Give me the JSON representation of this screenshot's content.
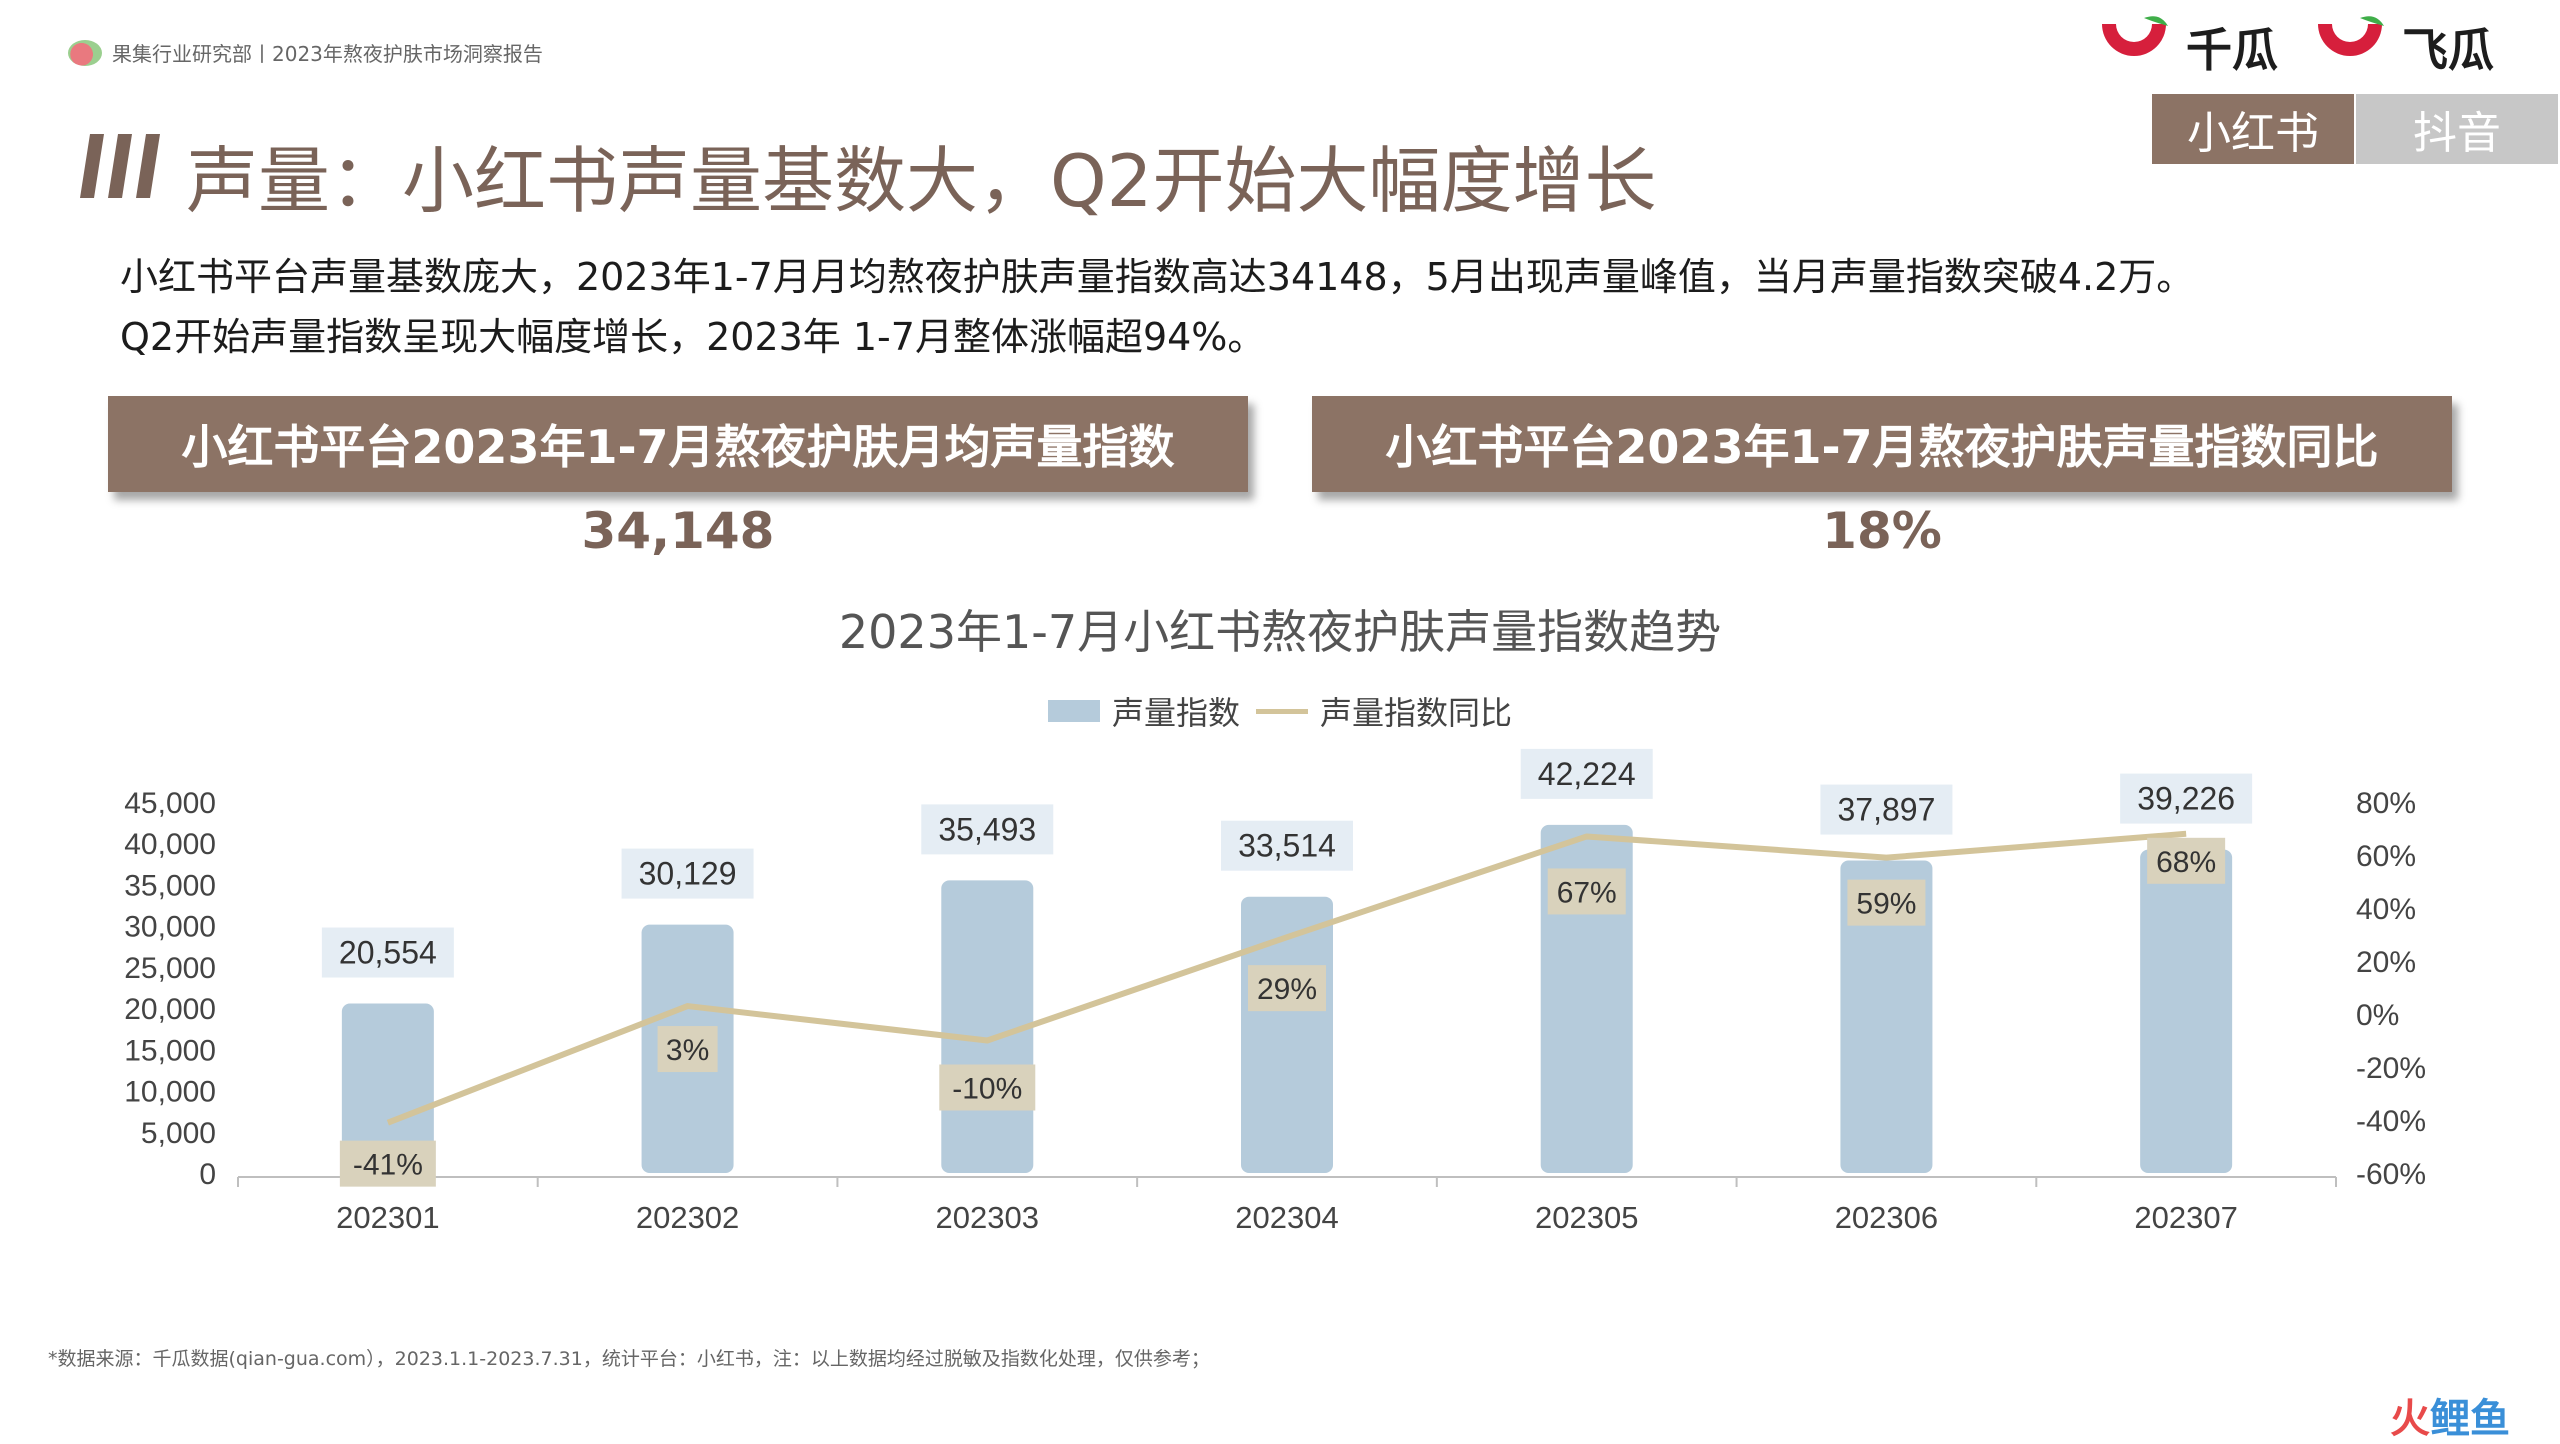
{
  "header": {
    "caption": "果集行业研究部丨2023年熬夜护肤市场洞察报告",
    "brands": [
      "千瓜",
      "飞瓜"
    ]
  },
  "platform_tabs": [
    {
      "label": "小红书",
      "active": true
    },
    {
      "label": "抖音",
      "active": false
    }
  ],
  "page_title": "声量：小红书声量基数大，Q2开始大幅度增长",
  "description": [
    "小红书平台声量基数庞大，2023年1-7月月均熬夜护肤声量指数高达34148，5月出现声量峰值，当月声量指数突破4.2万。",
    "Q2开始声量指数呈现大幅度增长，2023年 1-7月整体涨幅超94%。"
  ],
  "kpis": [
    {
      "label": "小红书平台2023年1-7月熬夜护肤月均声量指数",
      "value": "34,148"
    },
    {
      "label": "小红书平台2023年1-7月熬夜护肤声量指数同比",
      "value": "18%"
    }
  ],
  "colors": {
    "accent": "#8c7365",
    "bar": "#b5cbdb",
    "line": "#d3c49a",
    "title_text": "#7a6358"
  },
  "chart_data": {
    "type": "bar",
    "title": "2023年1-7月小红书熬夜护肤声量指数趋势",
    "categories": [
      "202301",
      "202302",
      "202303",
      "202304",
      "202305",
      "202306",
      "202307"
    ],
    "series": [
      {
        "name": "声量指数",
        "type": "bar",
        "axis": "left",
        "values": [
          20554,
          30129,
          35493,
          33514,
          42224,
          37897,
          39226
        ],
        "labels": [
          "20,554",
          "30,129",
          "35,493",
          "33,514",
          "42,224",
          "37,897",
          "39,226"
        ]
      },
      {
        "name": "声量指数同比",
        "type": "line",
        "axis": "right",
        "values": [
          -41,
          3,
          -10,
          29,
          67,
          59,
          68
        ],
        "labels": [
          "-41%",
          "3%",
          "-10%",
          "29%",
          "67%",
          "59%",
          "68%"
        ]
      }
    ],
    "y_left": {
      "ylim": [
        0,
        45000
      ],
      "ticks": [
        "0",
        "5,000",
        "10,000",
        "15,000",
        "20,000",
        "25,000",
        "30,000",
        "35,000",
        "40,000",
        "45,000"
      ]
    },
    "y_right": {
      "ylim": [
        -60,
        80
      ],
      "ticks": [
        "-60%",
        "-40%",
        "-20%",
        "0%",
        "20%",
        "40%",
        "60%",
        "80%"
      ]
    },
    "grid": false,
    "legend": "top"
  },
  "footnote": "*数据来源：千瓜数据(qian-gua.com），2023.1.1-2023.7.31，统计平台：小红书，注：以上数据均经过脱敏及指数化处理，仅供参考；",
  "corner_logo": {
    "part1": "火",
    "part2": "鲤鱼"
  }
}
